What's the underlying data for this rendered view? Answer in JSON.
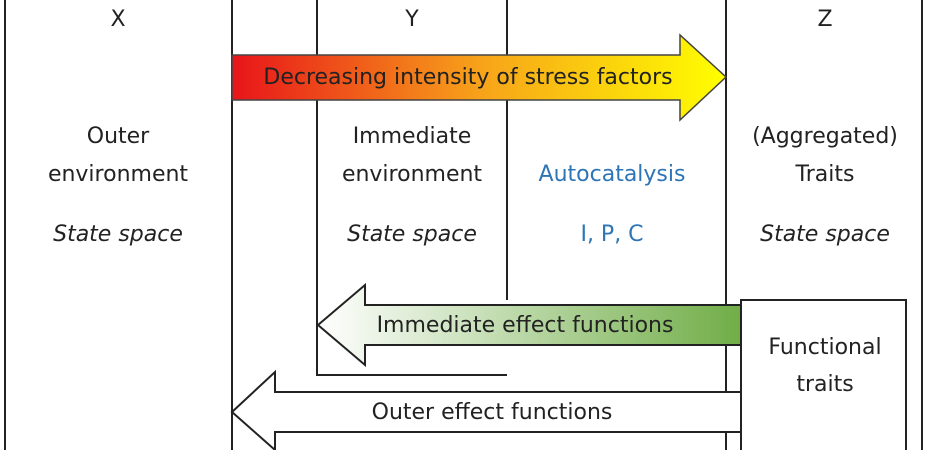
{
  "columns": [
    {
      "header": "X",
      "lines": [
        "Outer",
        "environment"
      ],
      "space": "State space"
    },
    {
      "header": "Y",
      "lines": [
        "Immediate",
        "environment"
      ],
      "space": "State space"
    },
    {
      "lines": [
        "Autocatalysis"
      ],
      "space": "I, P, C"
    },
    {
      "header": "Z",
      "lines": [
        "(Aggregated)",
        "Traits"
      ],
      "space": "State space"
    }
  ],
  "arrows": {
    "stress": "Decreasing intensity of stress factors",
    "immediate": "Immediate effect functions",
    "outer": "Outer effect functions"
  },
  "box": {
    "lines": [
      "Functional",
      "traits"
    ]
  }
}
